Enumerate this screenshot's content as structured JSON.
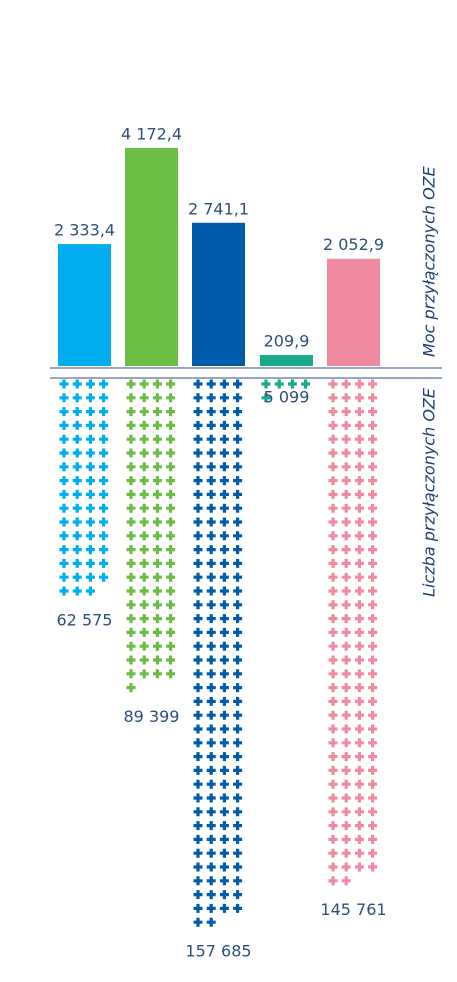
{
  "chart_data": [
    {
      "type": "bar",
      "y_label": "Moc przyłączonych OZE",
      "values": [
        2333.4,
        4172.4,
        2741.1,
        209.9,
        2052.9
      ],
      "value_labels": [
        "2 333,4",
        "4 172,4",
        "2 741,1",
        "209,9",
        "2 052,9"
      ],
      "colors": [
        "#00aeef",
        "#6cbd45",
        "#005baa",
        "#1aaa8a",
        "#f08aa0"
      ]
    },
    {
      "type": "pictogram",
      "y_label": "Liczba przyłączonych OZE",
      "values": [
        62575,
        89399,
        157685,
        5099,
        145761
      ],
      "value_labels": [
        "62 575",
        "89 399",
        "157 685",
        "5 099",
        "145 761"
      ],
      "colors": [
        "#00aeef",
        "#6cbd45",
        "#005baa",
        "#1aaa8a",
        "#f08aa0"
      ]
    }
  ]
}
